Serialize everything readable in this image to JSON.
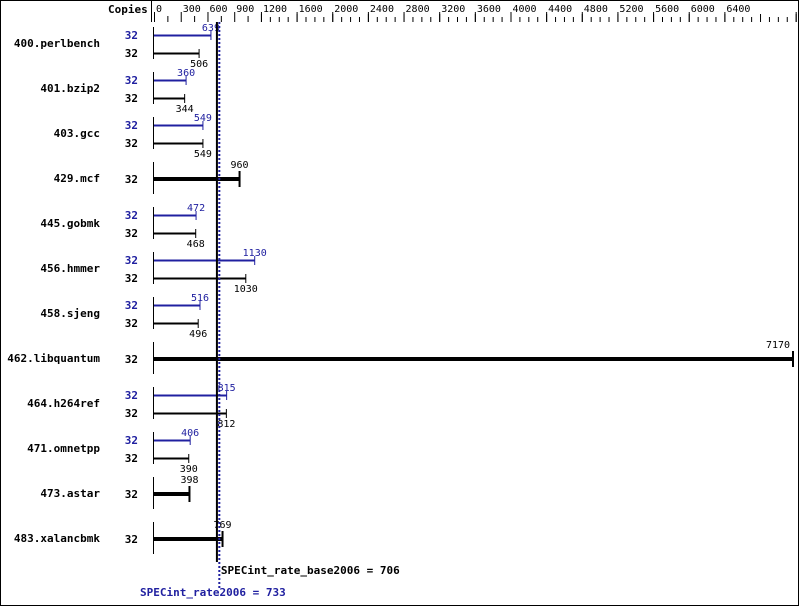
{
  "chart_data": {
    "type": "bar",
    "orientation": "horizontal",
    "xlabel": "",
    "copies_header": "Copies",
    "xlim": [
      0,
      7200
    ],
    "x_ticks": [
      0,
      300,
      600,
      900,
      1200,
      1600,
      2000,
      2400,
      2800,
      3200,
      3600,
      4000,
      4400,
      4800,
      5200,
      5600,
      6000,
      6400,
      7200
    ],
    "grid": false,
    "colors": {
      "base": "#000000",
      "peak": "#2020a0"
    },
    "benchmarks": [
      {
        "name": "400.perlbench",
        "peak_copies": "32",
        "peak": 639,
        "base_copies": "32",
        "base": 506
      },
      {
        "name": "401.bzip2",
        "peak_copies": "32",
        "peak": 360,
        "base_copies": "32",
        "base": 344
      },
      {
        "name": "403.gcc",
        "peak_copies": "32",
        "peak": 549,
        "base_copies": "32",
        "base": 549
      },
      {
        "name": "429.mcf",
        "peak_copies": null,
        "peak": null,
        "base_copies": "32",
        "base": 960
      },
      {
        "name": "445.gobmk",
        "peak_copies": "32",
        "peak": 472,
        "base_copies": "32",
        "base": 468
      },
      {
        "name": "456.hmmer",
        "peak_copies": "32",
        "peak": 1130,
        "base_copies": "32",
        "base": 1030
      },
      {
        "name": "458.sjeng",
        "peak_copies": "32",
        "peak": 516,
        "base_copies": "32",
        "base": 496
      },
      {
        "name": "462.libquantum",
        "peak_copies": null,
        "peak": null,
        "base_copies": "32",
        "base": 7170
      },
      {
        "name": "464.h264ref",
        "peak_copies": "32",
        "peak": 815,
        "base_copies": "32",
        "base": 812
      },
      {
        "name": "471.omnetpp",
        "peak_copies": "32",
        "peak": 406,
        "base_copies": "32",
        "base": 390
      },
      {
        "name": "473.astar",
        "peak_copies": null,
        "peak": null,
        "base_copies": "32",
        "base": 398
      },
      {
        "name": "483.xalancbmk",
        "peak_copies": null,
        "peak": null,
        "base_copies": "32",
        "base": 769
      }
    ],
    "summary": {
      "base_label": "SPECint_rate_base2006 = 706",
      "base_value": 706,
      "peak_label": "SPECint_rate2006 = 733",
      "peak_value": 733
    }
  }
}
